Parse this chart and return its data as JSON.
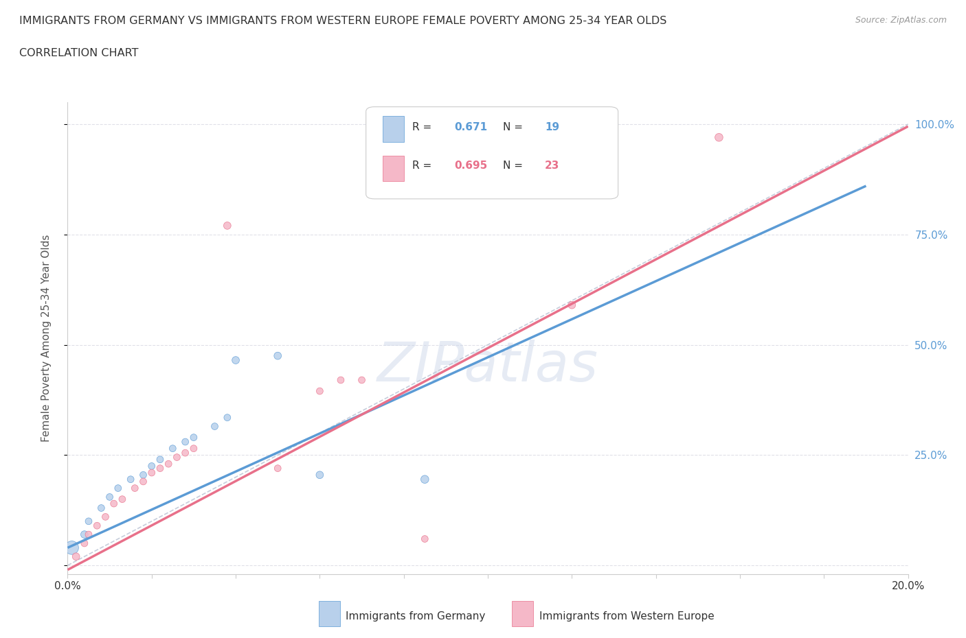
{
  "title": "IMMIGRANTS FROM GERMANY VS IMMIGRANTS FROM WESTERN EUROPE FEMALE POVERTY AMONG 25-34 YEAR OLDS",
  "subtitle": "CORRELATION CHART",
  "source": "Source: ZipAtlas.com",
  "ylabel": "Female Poverty Among 25-34 Year Olds",
  "xlim": [
    0.0,
    0.2
  ],
  "ylim": [
    -0.02,
    1.05
  ],
  "yticks": [
    0.0,
    0.25,
    0.5,
    0.75,
    1.0
  ],
  "ytick_labels": [
    "",
    "25.0%",
    "50.0%",
    "75.0%",
    "100.0%"
  ],
  "background_color": "#ffffff",
  "grid_color": "#e0e0e8",
  "watermark": "ZIPatlas",
  "legend1_label": "Immigrants from Germany",
  "legend2_label": "Immigrants from Western Europe",
  "R1": 0.671,
  "N1": 19,
  "R2": 0.695,
  "N2": 23,
  "color_germany_fill": "#b8d0eb",
  "color_western_fill": "#f5b8c8",
  "color_germany_line": "#5b9bd5",
  "color_western_line": "#e8708a",
  "color_dashed": "#c0c8d8",
  "scatter_germany": [
    [
      0.001,
      0.04
    ],
    [
      0.004,
      0.07
    ],
    [
      0.005,
      0.1
    ],
    [
      0.008,
      0.13
    ],
    [
      0.01,
      0.155
    ],
    [
      0.012,
      0.175
    ],
    [
      0.015,
      0.195
    ],
    [
      0.018,
      0.205
    ],
    [
      0.02,
      0.225
    ],
    [
      0.022,
      0.24
    ],
    [
      0.025,
      0.265
    ],
    [
      0.028,
      0.28
    ],
    [
      0.03,
      0.29
    ],
    [
      0.035,
      0.315
    ],
    [
      0.038,
      0.335
    ],
    [
      0.04,
      0.465
    ],
    [
      0.05,
      0.475
    ],
    [
      0.06,
      0.205
    ],
    [
      0.085,
      0.195
    ]
  ],
  "scatter_western": [
    [
      0.002,
      0.02
    ],
    [
      0.004,
      0.05
    ],
    [
      0.005,
      0.07
    ],
    [
      0.007,
      0.09
    ],
    [
      0.009,
      0.11
    ],
    [
      0.011,
      0.14
    ],
    [
      0.013,
      0.15
    ],
    [
      0.016,
      0.175
    ],
    [
      0.018,
      0.19
    ],
    [
      0.02,
      0.21
    ],
    [
      0.022,
      0.22
    ],
    [
      0.024,
      0.23
    ],
    [
      0.026,
      0.245
    ],
    [
      0.028,
      0.255
    ],
    [
      0.03,
      0.265
    ],
    [
      0.038,
      0.77
    ],
    [
      0.05,
      0.22
    ],
    [
      0.06,
      0.395
    ],
    [
      0.065,
      0.42
    ],
    [
      0.07,
      0.42
    ],
    [
      0.085,
      0.06
    ],
    [
      0.12,
      0.59
    ],
    [
      0.155,
      0.97
    ]
  ],
  "bubble_size_germany": [
    200,
    60,
    50,
    50,
    50,
    50,
    50,
    50,
    50,
    50,
    50,
    50,
    50,
    50,
    50,
    60,
    60,
    60,
    70
  ],
  "bubble_size_western": [
    60,
    50,
    50,
    50,
    50,
    50,
    50,
    50,
    50,
    50,
    50,
    50,
    50,
    50,
    50,
    60,
    50,
    50,
    50,
    50,
    50,
    60,
    70
  ],
  "line_germany": [
    [
      0.0,
      0.04
    ],
    [
      0.19,
      0.86
    ]
  ],
  "line_western": [
    [
      0.0,
      -0.01
    ],
    [
      0.2,
      0.995
    ]
  ],
  "title_color": "#333333",
  "tick_color_right": "#5b9bd5"
}
